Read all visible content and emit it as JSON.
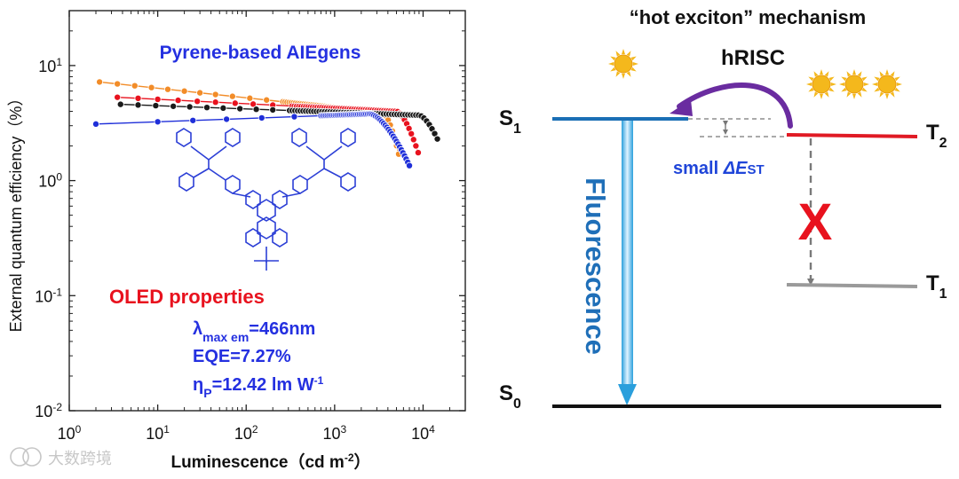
{
  "watermark": "大数跨境",
  "left_panel": {
    "chart_data": {
      "type": "scatter",
      "title": "Pyrene-based AIEgens",
      "xlabel": "Luminescence（cd m",
      "xlabel_sup": "-2",
      "xlabel_close": "）",
      "ylabel": "External quantum efficiency（%）",
      "xscale": "log",
      "yscale": "log",
      "xlim": [
        1,
        30000
      ],
      "ylim": [
        0.01,
        30
      ],
      "x_ticks": [
        {
          "base": "10",
          "exp": "0",
          "value": 1
        },
        {
          "base": "10",
          "exp": "1",
          "value": 10
        },
        {
          "base": "10",
          "exp": "2",
          "value": 100
        },
        {
          "base": "10",
          "exp": "3",
          "value": 1000
        },
        {
          "base": "10",
          "exp": "4",
          "value": 10000
        }
      ],
      "y_ticks": [
        {
          "base": "10",
          "exp": "-2",
          "value": 0.01
        },
        {
          "base": "10",
          "exp": "-1",
          "value": 0.1
        },
        {
          "base": "10",
          "exp": "0",
          "value": 1
        },
        {
          "base": "10",
          "exp": "1",
          "value": 10
        }
      ],
      "series": [
        {
          "name": "orange",
          "color": "#F28C28",
          "x0": 2.2,
          "x1": 5300,
          "start": 7.2,
          "mid": 3.9,
          "drop_from": 3500,
          "end": 1.7,
          "sparse": [
            2.2,
            3.5,
            5.5,
            8.5,
            13,
            20,
            30,
            45,
            70,
            110,
            170,
            260
          ]
        },
        {
          "name": "red",
          "color": "#E8121E",
          "x0": 3.5,
          "x1": 8800,
          "start": 5.3,
          "mid": 4.0,
          "drop_from": 5000,
          "end": 1.75,
          "sparse": [
            3.5,
            6,
            10,
            17,
            28,
            45,
            75,
            120,
            200,
            330
          ]
        },
        {
          "name": "black",
          "color": "#1A1A1A",
          "x0": 3.8,
          "x1": 14500,
          "start": 4.6,
          "mid": 3.7,
          "drop_from": 9000,
          "end": 2.3,
          "sparse": [
            3.8,
            6,
            9.5,
            15,
            23,
            36,
            55,
            85,
            130,
            200,
            310
          ]
        },
        {
          "name": "blue",
          "color": "#1F2FD9",
          "x0": 2.0,
          "x1": 7000,
          "start": 3.1,
          "mid": 3.8,
          "drop_from": 2500,
          "end": 1.35,
          "sparse": [
            2,
            10,
            25,
            60,
            150,
            350,
            700
          ]
        }
      ]
    },
    "oled_title": "OLED properties",
    "lambda_symbol": "λ",
    "lambda_sub": "max em",
    "lambda_value": "=466nm",
    "eqe": "EQE=7.27%",
    "eta_symbol": "η",
    "eta_sub": "P",
    "eta_value": "=12.42 lm W",
    "eta_sup": "-1",
    "molecule": {
      "tbu_label": "+"
    }
  },
  "right_panel": {
    "mechanism_title": "“hot exciton” mechanism",
    "hrisc": "hRISC",
    "s1": {
      "letter": "S",
      "sub": "1"
    },
    "t2": {
      "letter": "T",
      "sub": "2"
    },
    "t1": {
      "letter": "T",
      "sub": "1"
    },
    "s0": {
      "letter": "S",
      "sub": "0"
    },
    "fluorescence": "Fluorescence",
    "gap_label": "small ",
    "gap_symbol": "ΔE",
    "gap_sub": "ST",
    "blocked_mark": "X",
    "colors": {
      "s1_level": "#1a6fb5",
      "t2_level": "#e01a24",
      "t1_level": "#9a9a9a",
      "s0_level": "#111111",
      "arrow_purple": "#6a2ca0",
      "sun": "#f4b81c"
    }
  }
}
